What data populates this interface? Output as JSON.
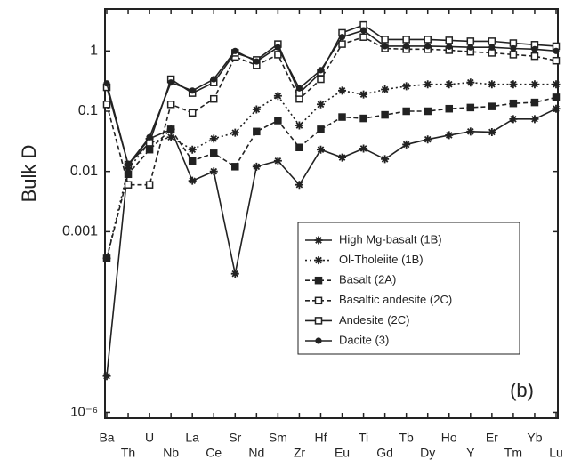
{
  "chart_data": {
    "type": "line",
    "y_label": "Bulk D",
    "annotation": "(b)",
    "categories": [
      "Ba",
      "Th",
      "U",
      "Nb",
      "La",
      "Ce",
      "Sr",
      "Nd",
      "Sm",
      "Zr",
      "Hf",
      "Eu",
      "Ti",
      "Gd",
      "Tb",
      "Dy",
      "Ho",
      "Y",
      "Er",
      "Tm",
      "Yb",
      "Lu"
    ],
    "log_scale": true,
    "ylim": [
      8e-07,
      5
    ],
    "yticks": [
      1,
      0.1,
      0.01,
      0.001,
      {
        "value": 1e-06,
        "label": "10⁻⁶"
      }
    ],
    "grid": false,
    "legend": "lower right",
    "series": [
      {
        "name": "High Mg-basalt (1B)",
        "color": "#222222",
        "marker": "star",
        "dash": "solid",
        "values": [
          4e-06,
          0.013,
          0.035,
          0.05,
          0.007,
          0.01,
          0.0002,
          0.012,
          0.015,
          0.006,
          0.023,
          0.017,
          0.024,
          0.016,
          0.028,
          0.034,
          0.04,
          0.046,
          0.045,
          0.074,
          0.074,
          0.11
        ]
      },
      {
        "name": "Ol-Tholeiite (1B)",
        "color": "#222222",
        "marker": "star",
        "dash": "dotted",
        "values": [
          0.00036,
          0.011,
          0.03,
          0.037,
          0.023,
          0.035,
          0.044,
          0.107,
          0.18,
          0.058,
          0.13,
          0.22,
          0.19,
          0.23,
          0.26,
          0.28,
          0.28,
          0.3,
          0.28,
          0.28,
          0.28,
          0.28
        ]
      },
      {
        "name": "Basalt (2A)",
        "color": "#222222",
        "marker": "square",
        "dash": "dashed",
        "values": [
          0.00036,
          0.009,
          0.023,
          0.05,
          0.015,
          0.02,
          0.012,
          0.046,
          0.07,
          0.025,
          0.05,
          0.08,
          0.076,
          0.087,
          0.1,
          0.1,
          0.11,
          0.115,
          0.12,
          0.135,
          0.14,
          0.17
        ]
      },
      {
        "name": "Basaltic andesite (2C)",
        "color": "#222222",
        "marker": "open-square",
        "dash": "dashed",
        "values": [
          0.13,
          0.006,
          0.006,
          0.13,
          0.094,
          0.16,
          0.8,
          0.58,
          0.87,
          0.16,
          0.34,
          1.3,
          1.7,
          1.1,
          1.07,
          1.07,
          1.03,
          0.97,
          0.93,
          0.87,
          0.82,
          0.69
        ]
      },
      {
        "name": "Andesite (2C)",
        "color": "#222222",
        "marker": "open-square",
        "dash": "solid",
        "values": [
          0.25,
          0.013,
          0.03,
          0.34,
          0.2,
          0.3,
          0.93,
          0.71,
          1.3,
          0.2,
          0.44,
          2,
          2.7,
          1.55,
          1.55,
          1.55,
          1.5,
          1.45,
          1.45,
          1.35,
          1.27,
          1.2
        ]
      },
      {
        "name": "Dacite (3)",
        "color": "#222222",
        "marker": "circle",
        "dash": "solid",
        "values": [
          0.29,
          0.013,
          0.037,
          0.3,
          0.22,
          0.34,
          1,
          0.67,
          1.15,
          0.24,
          0.48,
          1.7,
          2.2,
          1.2,
          1.2,
          1.2,
          1.18,
          1.15,
          1.15,
          1.1,
          1.07,
          1
        ]
      }
    ]
  }
}
